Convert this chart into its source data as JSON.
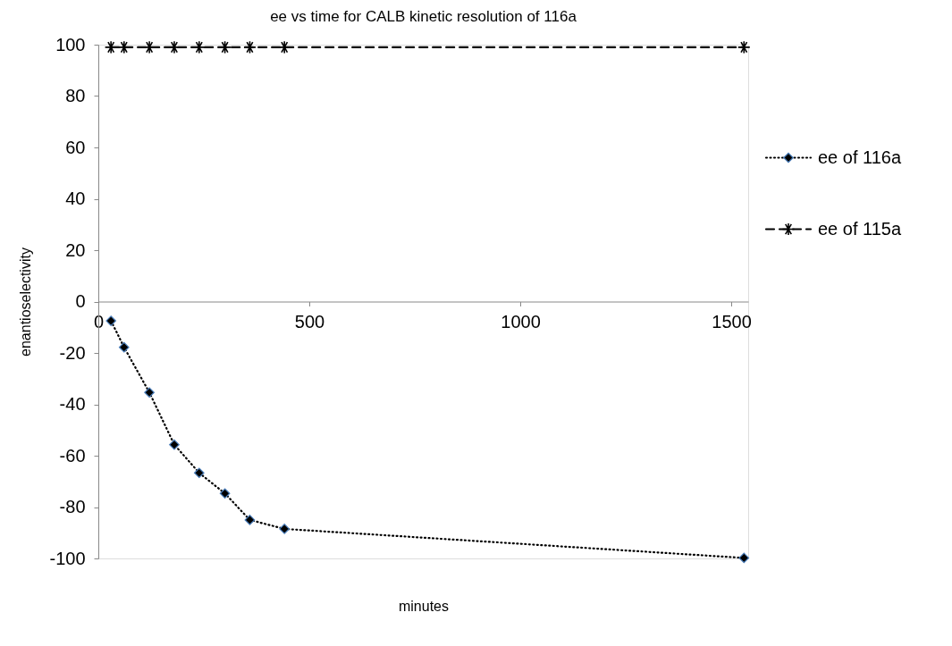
{
  "chart_data": {
    "type": "line",
    "title": "ee vs time for CALB kinetic resolution of 116a",
    "xlabel": "minutes",
    "ylabel": "enantioselectivity",
    "xlim": [
      0,
      1540
    ],
    "xticks": [
      0,
      500,
      1000,
      1500
    ],
    "ylim": [
      -100,
      100
    ],
    "yticks": [
      -100,
      -80,
      -60,
      -40,
      -20,
      0,
      20,
      40,
      60,
      80,
      100
    ],
    "grid": false,
    "legend": "right",
    "series": [
      {
        "name": "ee of 116a",
        "color": "#000000",
        "marker": "diamond",
        "line_style": "dotted",
        "x": [
          30,
          61,
          121,
          180,
          239,
          300,
          359,
          441,
          1530
        ],
        "values": [
          -7.5,
          -17.8,
          -35.4,
          -55.7,
          -66.7,
          -74.7,
          -85,
          -88.5,
          -99.8
        ]
      },
      {
        "name": "ee of 115a",
        "color": "#000000",
        "marker": "cross",
        "line_style": "dashed",
        "x": [
          30,
          61,
          121,
          180,
          239,
          300,
          359,
          441,
          1530
        ],
        "values": [
          99,
          99,
          99,
          99,
          99,
          99,
          99,
          99,
          99
        ]
      }
    ]
  }
}
